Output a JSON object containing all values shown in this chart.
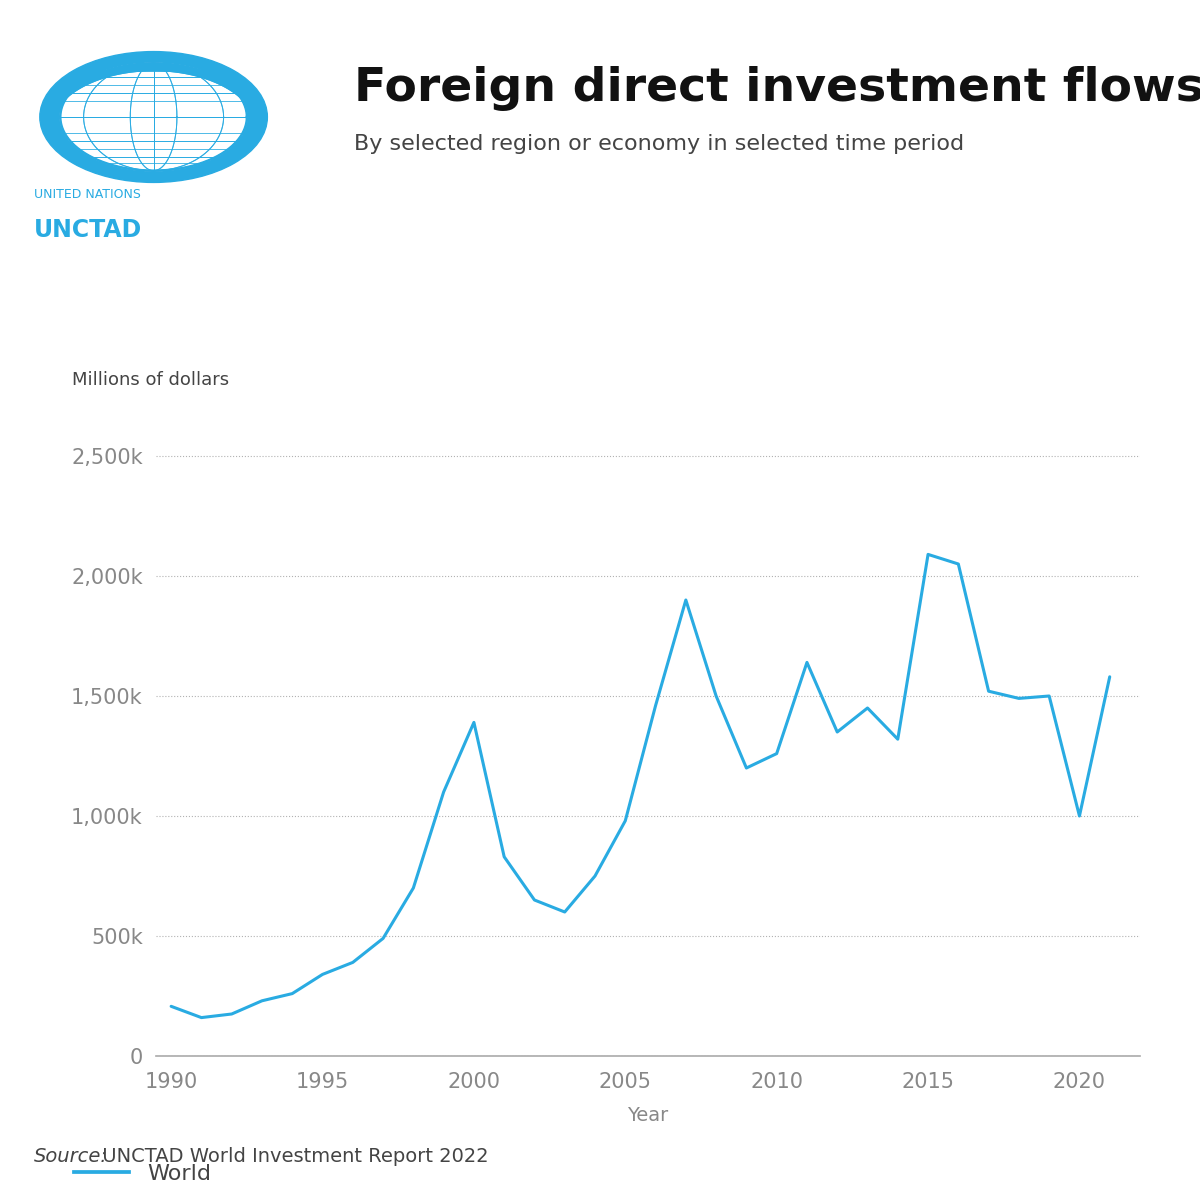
{
  "title": "Foreign direct investment flows",
  "subtitle": "By selected region or economy in selected time period",
  "ylabel": "Millions of dollars",
  "xlabel": "Year",
  "legend_label": "World",
  "source_italic": "Source:",
  "source_rest": " UNCTAD World Investment Report 2022",
  "line_color": "#29ABE2",
  "line_width": 2.2,
  "background_color": "#ffffff",
  "yticks": [
    0,
    500000,
    1000000,
    1500000,
    2000000,
    2500000
  ],
  "ytick_labels": [
    "0",
    "500k",
    "1,000k",
    "1,500k",
    "2,000k",
    "2,500k"
  ],
  "xticks": [
    1990,
    1995,
    2000,
    2005,
    2010,
    2015,
    2020
  ],
  "years": [
    1990,
    1991,
    1992,
    1993,
    1994,
    1995,
    1996,
    1997,
    1998,
    1999,
    2000,
    2001,
    2002,
    2003,
    2004,
    2005,
    2006,
    2007,
    2008,
    2009,
    2010,
    2011,
    2012,
    2013,
    2014,
    2015,
    2016,
    2017,
    2018,
    2019,
    2020,
    2021
  ],
  "values": [
    207000,
    160000,
    175000,
    230000,
    260000,
    340000,
    390000,
    490000,
    700000,
    1100000,
    1390000,
    830000,
    650000,
    600000,
    750000,
    980000,
    1460000,
    1900000,
    1500000,
    1200000,
    1260000,
    1640000,
    1350000,
    1450000,
    1320000,
    2090000,
    2050000,
    1520000,
    1490000,
    1500000,
    1000000,
    1580000
  ],
  "ylim": [
    0,
    2700000
  ],
  "xlim": [
    1989.5,
    2022
  ],
  "title_fontsize": 34,
  "subtitle_fontsize": 16,
  "axis_label_fontsize": 14,
  "tick_fontsize": 15,
  "legend_fontsize": 16,
  "source_fontsize": 14,
  "ylabel_fontsize": 13,
  "grid_color": "#aaaaaa",
  "grid_linestyle": "dotted",
  "axis_color": "#aaaaaa",
  "tick_color": "#888888",
  "text_color": "#444444",
  "un_blue": "#29ABE2",
  "title_color": "#111111",
  "united_nations_text": "UNITED NATIONS",
  "unctad_text": "UNCTAD"
}
